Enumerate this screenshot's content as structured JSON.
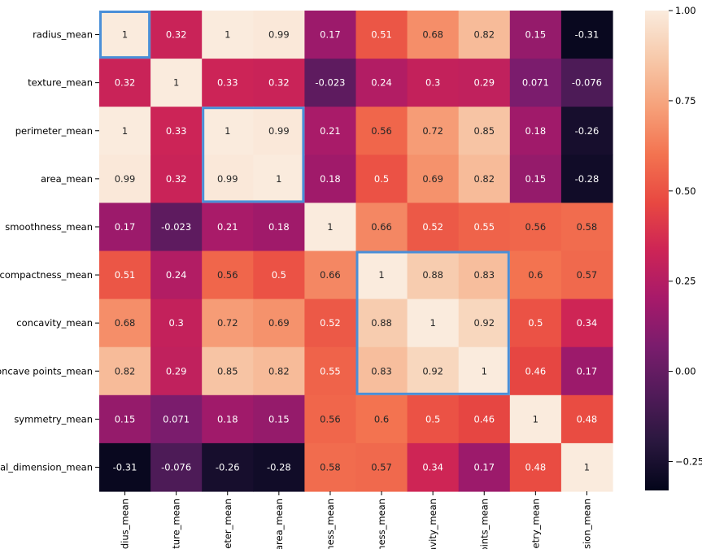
{
  "chart_data": {
    "type": "heatmap",
    "title": "",
    "xlabel": "",
    "ylabel": "",
    "y_labels": [
      "radius_mean",
      "texture_mean",
      "perimeter_mean",
      "area_mean",
      "smoothness_mean",
      "compactness_mean",
      "concavity_mean",
      "concave points_mean",
      "symmetry_mean",
      "ctal_dimension_mean"
    ],
    "x_labels": [
      "adius_mean",
      "xture_mean",
      "neter_mean",
      "area_mean",
      "hness_mean",
      "tness_mean",
      "avity_mean",
      "points_mean",
      "netry_mean",
      "nsion_mean"
    ],
    "values": [
      [
        1,
        0.32,
        1,
        0.99,
        0.17,
        0.51,
        0.68,
        0.82,
        0.15,
        -0.31
      ],
      [
        0.32,
        1,
        0.33,
        0.32,
        -0.023,
        0.24,
        0.3,
        0.29,
        0.071,
        -0.076
      ],
      [
        1,
        0.33,
        1,
        0.99,
        0.21,
        0.56,
        0.72,
        0.85,
        0.18,
        -0.26
      ],
      [
        0.99,
        0.32,
        0.99,
        1,
        0.18,
        0.5,
        0.69,
        0.82,
        0.15,
        -0.28
      ],
      [
        0.17,
        -0.023,
        0.21,
        0.18,
        1,
        0.66,
        0.52,
        0.55,
        0.56,
        0.58
      ],
      [
        0.51,
        0.24,
        0.56,
        0.5,
        0.66,
        1,
        0.88,
        0.83,
        0.6,
        0.57
      ],
      [
        0.68,
        0.3,
        0.72,
        0.69,
        0.52,
        0.88,
        1,
        0.92,
        0.5,
        0.34
      ],
      [
        0.82,
        0.29,
        0.85,
        0.82,
        0.55,
        0.83,
        0.92,
        1,
        0.46,
        0.17
      ],
      [
        0.15,
        0.071,
        0.18,
        0.15,
        0.56,
        0.6,
        0.5,
        0.46,
        1,
        0.48
      ],
      [
        -0.31,
        -0.076,
        -0.26,
        -0.28,
        0.58,
        0.57,
        0.34,
        0.17,
        0.48,
        1
      ]
    ],
    "value_labels": [
      [
        "1",
        "0.32",
        "1",
        "0.99",
        "0.17",
        "0.51",
        "0.68",
        "0.82",
        "0.15",
        "-0.31"
      ],
      [
        "0.32",
        "1",
        "0.33",
        "0.32",
        "-0.023",
        "0.24",
        "0.3",
        "0.29",
        "0.071",
        "-0.076"
      ],
      [
        "1",
        "0.33",
        "1",
        "0.99",
        "0.21",
        "0.56",
        "0.72",
        "0.85",
        "0.18",
        "-0.26"
      ],
      [
        "0.99",
        "0.32",
        "0.99",
        "1",
        "0.18",
        "0.5",
        "0.69",
        "0.82",
        "0.15",
        "-0.28"
      ],
      [
        "0.17",
        "-0.023",
        "0.21",
        "0.18",
        "1",
        "0.66",
        "0.52",
        "0.55",
        "0.56",
        "0.58"
      ],
      [
        "0.51",
        "0.24",
        "0.56",
        "0.5",
        "0.66",
        "1",
        "0.88",
        "0.83",
        "0.6",
        "0.57"
      ],
      [
        "0.68",
        "0.3",
        "0.72",
        "0.69",
        "0.52",
        "0.88",
        "1",
        "0.92",
        "0.5",
        "0.34"
      ],
      [
        "0.82",
        "0.29",
        "0.85",
        "0.82",
        "0.55",
        "0.83",
        "0.92",
        "1",
        "0.46",
        "0.17"
      ],
      [
        "0.15",
        "0.071",
        "0.18",
        "0.15",
        "0.56",
        "0.6",
        "0.5",
        "0.46",
        "1",
        "0.48"
      ],
      [
        "-0.31",
        "-0.076",
        "-0.26",
        "-0.28",
        "0.58",
        "0.57",
        "0.34",
        "0.17",
        "0.48",
        "1"
      ]
    ],
    "colorbar": {
      "vmin": -0.33,
      "vmax": 1.0,
      "ticks": [
        1.0,
        0.75,
        0.5,
        0.25,
        0.0,
        -0.25
      ],
      "tick_labels": [
        "1.00",
        "0.75",
        "0.50",
        "0.25",
        "0.00",
        "−0.25"
      ]
    },
    "colormap": "rocket",
    "highlight_boxes": [
      {
        "row_start": 0,
        "row_end": 0,
        "col_start": 0,
        "col_end": 0
      },
      {
        "row_start": 2,
        "row_end": 3,
        "col_start": 2,
        "col_end": 3
      },
      {
        "row_start": 5,
        "row_end": 7,
        "col_start": 5,
        "col_end": 7
      }
    ],
    "highlight_color": "#4a8fd8"
  }
}
